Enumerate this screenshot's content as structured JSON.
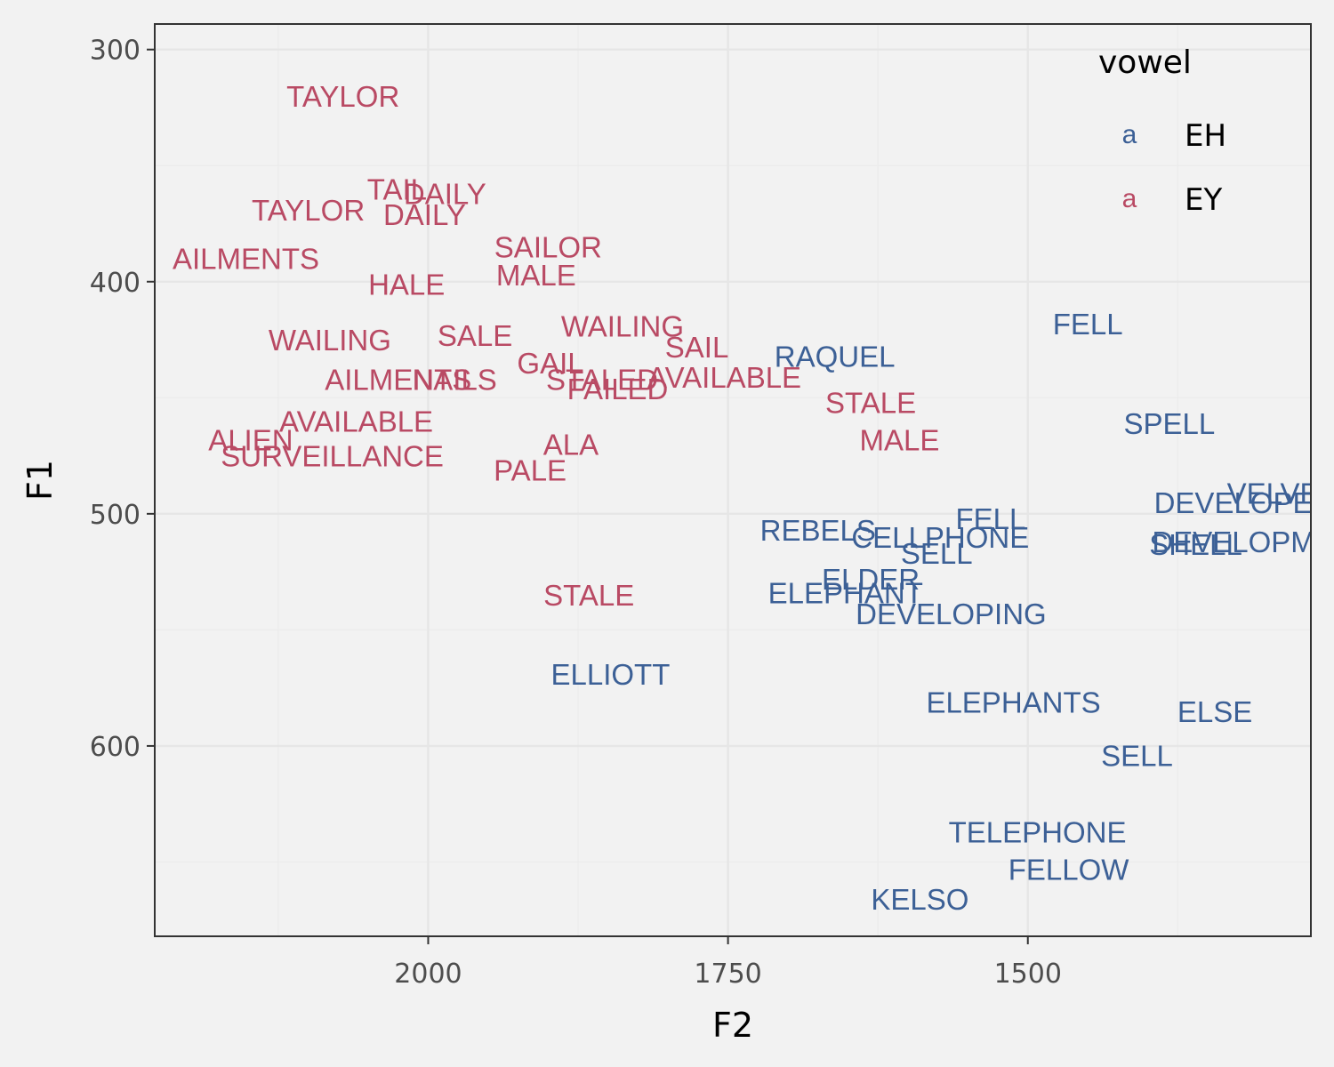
{
  "chart_data": {
    "type": "scatter",
    "marker": "text-label",
    "xlabel": "F2",
    "ylabel": "F1",
    "x_reversed": true,
    "y_reversed": true,
    "xlim": [
      2228,
      1264
    ],
    "ylim": [
      289,
      682
    ],
    "x_ticks": [
      2000,
      1750,
      1500
    ],
    "y_ticks": [
      300,
      400,
      500,
      600
    ],
    "grid": true,
    "legend": {
      "title": "vowel",
      "position": "top-right",
      "key_glyph": "a"
    },
    "series": [
      {
        "name": "EH",
        "color": "#3c6096",
        "points": [
          {
            "label": "FELL",
            "x": 1450,
            "y": 418
          },
          {
            "label": "RAQUEL",
            "x": 1661,
            "y": 432
          },
          {
            "label": "SPELL",
            "x": 1382,
            "y": 461
          },
          {
            "label": "VELVET",
            "x": 1288,
            "y": 491
          },
          {
            "label": "DEVELOPED",
            "x": 1320,
            "y": 495
          },
          {
            "label": "FELL",
            "x": 1531,
            "y": 502
          },
          {
            "label": "REBELS",
            "x": 1675,
            "y": 507
          },
          {
            "label": "CELLPHONE",
            "x": 1573,
            "y": 510
          },
          {
            "label": "SELL",
            "x": 1576,
            "y": 517
          },
          {
            "label": "DEVELOPMENT",
            "x": 1304,
            "y": 512
          },
          {
            "label": "SHELL",
            "x": 1360,
            "y": 513
          },
          {
            "label": "ELDER",
            "x": 1631,
            "y": 528
          },
          {
            "label": "ELEPHANT",
            "x": 1652,
            "y": 534
          },
          {
            "label": "DEVELOPING",
            "x": 1564,
            "y": 543
          },
          {
            "label": "ELLIOTT",
            "x": 1848,
            "y": 569
          },
          {
            "label": "ELEPHANTS",
            "x": 1512,
            "y": 581
          },
          {
            "label": "ELSE",
            "x": 1344,
            "y": 585
          },
          {
            "label": "SELL",
            "x": 1409,
            "y": 604
          },
          {
            "label": "TELEPHONE",
            "x": 1492,
            "y": 637
          },
          {
            "label": "FELLOW",
            "x": 1466,
            "y": 653
          },
          {
            "label": "KELSO",
            "x": 1590,
            "y": 666
          }
        ]
      },
      {
        "name": "EY",
        "color": "#b94a64",
        "points": [
          {
            "label": "TAYLOR",
            "x": 2071,
            "y": 320
          },
          {
            "label": "TAIL",
            "x": 2026,
            "y": 360
          },
          {
            "label": "DAILY",
            "x": 1986,
            "y": 362
          },
          {
            "label": "TAYLOR",
            "x": 2100,
            "y": 369
          },
          {
            "label": "DAILY",
            "x": 2003,
            "y": 371
          },
          {
            "label": "AILMENTS",
            "x": 2152,
            "y": 390
          },
          {
            "label": "SAILOR",
            "x": 1900,
            "y": 385
          },
          {
            "label": "MALE",
            "x": 1910,
            "y": 397
          },
          {
            "label": "HALE",
            "x": 2018,
            "y": 401
          },
          {
            "label": "WAILING",
            "x": 2082,
            "y": 425
          },
          {
            "label": "SALE",
            "x": 1961,
            "y": 423
          },
          {
            "label": "WAILING",
            "x": 1838,
            "y": 419
          },
          {
            "label": "SAIL",
            "x": 1776,
            "y": 428
          },
          {
            "label": "GAIL",
            "x": 1898,
            "y": 435
          },
          {
            "label": "AILMENTS",
            "x": 2025,
            "y": 442
          },
          {
            "label": "NAILS",
            "x": 1978,
            "y": 442
          },
          {
            "label": "STALED",
            "x": 1855,
            "y": 442
          },
          {
            "label": "AVAILABLE",
            "x": 1753,
            "y": 441
          },
          {
            "label": "FAILED",
            "x": 1842,
            "y": 446
          },
          {
            "label": "STALE",
            "x": 1631,
            "y": 452
          },
          {
            "label": "AVAILABLE",
            "x": 2060,
            "y": 460
          },
          {
            "label": "ALIEN",
            "x": 2148,
            "y": 468
          },
          {
            "label": "SURVEILLANCE",
            "x": 2080,
            "y": 475
          },
          {
            "label": "ALA",
            "x": 1881,
            "y": 470
          },
          {
            "label": "MALE",
            "x": 1607,
            "y": 468
          },
          {
            "label": "PALE",
            "x": 1915,
            "y": 481
          },
          {
            "label": "STALE",
            "x": 1866,
            "y": 535
          }
        ]
      }
    ]
  }
}
